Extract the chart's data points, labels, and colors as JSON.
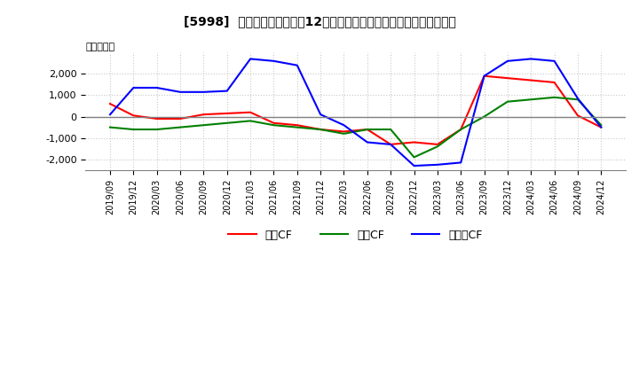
{
  "title": "[5998]  キャッシュフローの12か月移動合計の対前年同期増減額の推移",
  "ylabel": "（百万円）",
  "legend_labels": [
    "営業CF",
    "投資CF",
    "フリーCF"
  ],
  "colors": [
    "#ff0000",
    "#008000",
    "#0000ff"
  ],
  "x_labels": [
    "2019/09",
    "2019/12",
    "2020/03",
    "2020/06",
    "2020/09",
    "2020/12",
    "2021/03",
    "2021/06",
    "2021/09",
    "2021/12",
    "2022/03",
    "2022/06",
    "2022/09",
    "2022/12",
    "2023/03",
    "2023/06",
    "2023/09",
    "2023/12",
    "2024/03",
    "2024/06",
    "2024/09",
    "2024/12"
  ],
  "operating_cf": [
    600,
    50,
    -100,
    -100,
    100,
    150,
    200,
    -300,
    -400,
    -600,
    -700,
    -600,
    -1300,
    -1200,
    -1300,
    -600,
    1900,
    1800,
    1700,
    1600,
    50,
    -500
  ],
  "investing_cf": [
    -500,
    -600,
    -600,
    -500,
    -400,
    -300,
    -200,
    -400,
    -500,
    -600,
    -800,
    -600,
    -600,
    -1900,
    -1400,
    -600,
    0,
    700,
    800,
    900,
    800,
    -400
  ],
  "free_cf": [
    100,
    1350,
    1350,
    1150,
    1150,
    1200,
    2700,
    2600,
    2400,
    100,
    -400,
    -1200,
    -1300,
    -2300,
    -2250,
    -2150,
    1900,
    2600,
    2700,
    2600,
    850,
    -500
  ],
  "ylim": [
    -2500,
    3000
  ],
  "yticks": [
    -2000,
    -1000,
    0,
    1000,
    2000
  ],
  "background_color": "#ffffff",
  "grid_color": "#c8c8c8",
  "zero_line_color": "#808080"
}
